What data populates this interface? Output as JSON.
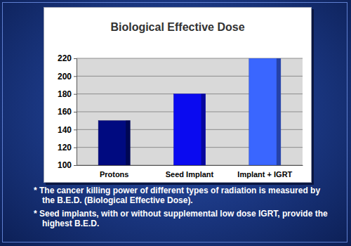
{
  "chart_data": {
    "type": "bar",
    "title": "Biological Effective Dose",
    "categories": [
      "Protons",
      "Seed Implant",
      "Implant + IGRT"
    ],
    "values": [
      150,
      180,
      220
    ],
    "colors": [
      "#000a80",
      "#0a0af0",
      "#3a66ff"
    ],
    "ylim": [
      100,
      220
    ],
    "yticks": [
      100,
      120,
      140,
      160,
      180,
      200,
      220
    ],
    "grid": true,
    "annotations": [
      "* The cancer killing power of different types of radiation is measured by the B.E.D. (Biological Effective Dose).",
      "* Seed implants, with or without supplemental low dose IGRT, provide the highest B.E.D."
    ]
  }
}
